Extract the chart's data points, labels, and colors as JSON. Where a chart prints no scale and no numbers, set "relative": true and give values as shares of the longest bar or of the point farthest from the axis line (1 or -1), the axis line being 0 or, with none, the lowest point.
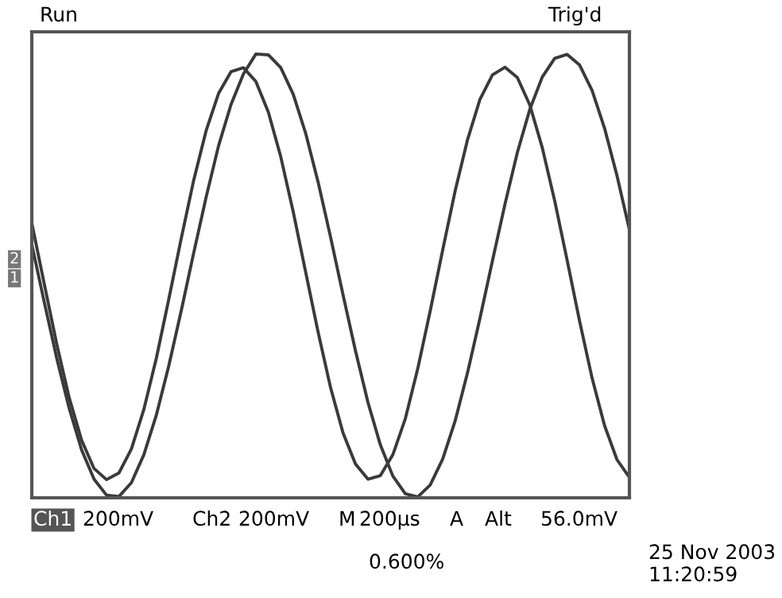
{
  "chart_data": {
    "type": "line",
    "relative": true,
    "legend": false,
    "marker": "none",
    "line_style": "solid",
    "categories": [
      null,
      null,
      null,
      null,
      null,
      null,
      null,
      null,
      null,
      null,
      null,
      null,
      null,
      null,
      null,
      null,
      null,
      null,
      null,
      null,
      null,
      null,
      null,
      null,
      null,
      null,
      null,
      null,
      null,
      null,
      null,
      null,
      null,
      null,
      null,
      null,
      null,
      null,
      null,
      null,
      null,
      null,
      null,
      null,
      null,
      null,
      null,
      null,
      null
    ],
    "series": [
      {
        "color": "#3a3a3a",
        "values": [
          0.619,
          0.482,
          0.347,
          0.226,
          0.13,
          0.066,
          0.041,
          0.056,
          0.11,
          0.199,
          0.314,
          0.447,
          0.584,
          0.715,
          0.827,
          0.911,
          0.96,
          0.969,
          0.938,
          0.869,
          0.768,
          0.644,
          0.508,
          0.373,
          0.248,
          0.146,
          0.076,
          0.042,
          0.05,
          0.097,
          0.178,
          0.291,
          0.421,
          0.558,
          0.691,
          0.807,
          0.898,
          0.953,
          0.97,
          0.947,
          0.885,
          0.789,
          0.669,
          0.535,
          0.398,
          0.27,
          0.163,
          0.086,
          0.046
        ]
      },
      {
        "color": "#3a3a3a",
        "values": [
          0.571,
          0.441,
          0.315,
          0.202,
          0.108,
          0.042,
          0.006,
          0.003,
          0.034,
          0.097,
          0.186,
          0.297,
          0.421,
          0.551,
          0.677,
          0.793,
          0.886,
          0.955,
          1,
          0.998,
          0.969,
          0.909,
          0.821,
          0.711,
          0.587,
          0.457,
          0.331,
          0.215,
          0.119,
          0.049,
          0.009,
          0.002,
          0.029,
          0.087,
          0.173,
          0.282,
          0.405,
          0.534,
          0.661,
          0.778,
          0.875,
          0.948,
          0.99,
          0.999,
          0.975,
          0.918,
          0.833,
          0.726,
          0.604
        ]
      }
    ],
    "annotations": [
      "Run",
      "Trig'd",
      "Ch1",
      "200mV",
      "Ch2",
      "200mV",
      "M",
      "200µs",
      "A",
      "Alt",
      "56.0mV",
      "25 Nov 2003\n11:20:59",
      "0.600%",
      "2",
      "1"
    ]
  }
}
